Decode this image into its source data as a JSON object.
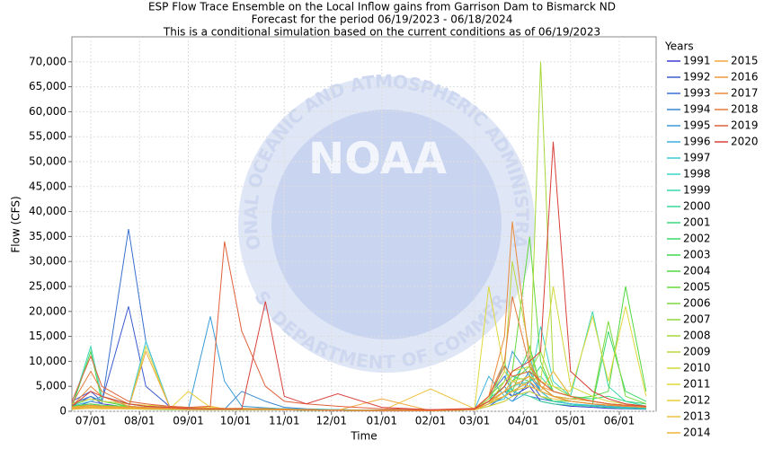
{
  "chart_data": {
    "type": "line",
    "title": [
      "ESP Flow Trace Ensemble on the Local Inflow gains from Garrison Dam to Bismarck ND",
      "Forecast for the period 06/19/2023 - 06/18/2024",
      "This is a conditional simulation based on the current conditions as of 06/19/2023"
    ],
    "xlabel": "Time",
    "ylabel": "Flow (CFS)",
    "legend_title": "Years",
    "watermark": {
      "top": "NATIONAL OCEANIC AND ATMOSPHERIC ADMINISTRATION",
      "center": "NOAA",
      "bottom": "U.S. DEPARTMENT OF COMMERCE"
    },
    "grid": true,
    "x": [
      "06/19",
      "07/01",
      "07/08",
      "07/25",
      "08/05",
      "08/20",
      "09/01",
      "09/15",
      "09/24",
      "10/05",
      "10/20",
      "11/01",
      "11/15",
      "12/05",
      "01/01",
      "02/01",
      "03/01",
      "03/10",
      "03/20",
      "03/25",
      "04/05",
      "04/12",
      "04/20",
      "05/01",
      "05/15",
      "05/25",
      "06/05",
      "06/18"
    ],
    "xticks": [
      "07/01",
      "08/01",
      "09/01",
      "10/01",
      "11/01",
      "12/01",
      "01/01",
      "02/01",
      "03/01",
      "04/01",
      "05/01",
      "06/01"
    ],
    "ylim": [
      0,
      75000
    ],
    "yticks": [
      0,
      {
        "value": 5000,
        "label": "5,000"
      },
      {
        "value": 10000,
        "label": "10,000"
      },
      {
        "value": 15000,
        "label": "15,000"
      },
      {
        "value": 20000,
        "label": "20,000"
      },
      {
        "value": 25000,
        "label": "25,000"
      },
      {
        "value": 30000,
        "label": "30,000"
      },
      {
        "value": 35000,
        "label": "35,000"
      },
      {
        "value": 40000,
        "label": "40,000"
      },
      {
        "value": 45000,
        "label": "45,000"
      },
      {
        "value": 50000,
        "label": "50,000"
      },
      {
        "value": 55000,
        "label": "55,000"
      },
      {
        "value": 60000,
        "label": "60,000"
      },
      {
        "value": 65000,
        "label": "65,000"
      },
      {
        "value": 70000,
        "label": "70,000"
      }
    ],
    "series": [
      {
        "name": "1991",
        "color": "#3a3ad0",
        "values": [
          1000,
          3000,
          1500,
          800,
          500,
          400,
          300,
          300,
          300,
          400,
          500,
          400,
          300,
          200,
          100,
          100,
          500,
          2000,
          4000,
          3000,
          5000,
          2000,
          1500,
          1000,
          800,
          600,
          500,
          400
        ]
      },
      {
        "name": "1992",
        "color": "#3a5ad0",
        "values": [
          2000,
          4000,
          2000,
          21000,
          5000,
          1000,
          500,
          400,
          300,
          300,
          300,
          300,
          200,
          200,
          100,
          100,
          300,
          1000,
          3000,
          2000,
          6000,
          3000,
          2000,
          1500,
          1000,
          800,
          600,
          500
        ]
      },
      {
        "name": "1993",
        "color": "#3a70d0",
        "values": [
          500,
          2000,
          1500,
          36500,
          14000,
          1000,
          500,
          400,
          400,
          500,
          600,
          500,
          400,
          300,
          200,
          200,
          400,
          3000,
          7000,
          4000,
          3000,
          2500,
          2000,
          1500,
          1000,
          800,
          700,
          600
        ]
      },
      {
        "name": "1994",
        "color": "#3a86d0",
        "values": [
          1500,
          3000,
          2000,
          1500,
          1000,
          800,
          600,
          500,
          400,
          4000,
          2000,
          800,
          500,
          300,
          200,
          200,
          500,
          2000,
          5000,
          3000,
          8000,
          4000,
          2000,
          1500,
          1000,
          800,
          600,
          500
        ]
      },
      {
        "name": "1995",
        "color": "#3a9cd6",
        "values": [
          800,
          1500,
          1000,
          800,
          600,
          500,
          400,
          19000,
          6000,
          1000,
          700,
          500,
          400,
          300,
          200,
          200,
          300,
          1500,
          6000,
          12000,
          7000,
          4000,
          3000,
          2000,
          1500,
          1000,
          800,
          600
        ]
      },
      {
        "name": "1996",
        "color": "#3ab0dc",
        "values": [
          1000,
          2000,
          3000,
          1500,
          1000,
          800,
          600,
          500,
          500,
          600,
          500,
          400,
          300,
          200,
          200,
          200,
          400,
          7000,
          3000,
          2000,
          4000,
          3000,
          2000,
          1500,
          1200,
          1000,
          800,
          700
        ]
      },
      {
        "name": "1997",
        "color": "#3ac8d8",
        "values": [
          600,
          1200,
          1000,
          800,
          14000,
          1000,
          600,
          500,
          400,
          400,
          400,
          300,
          300,
          200,
          100,
          100,
          300,
          1500,
          2500,
          6000,
          11000,
          4000,
          2000,
          1500,
          1000,
          800,
          600,
          500
        ]
      },
      {
        "name": "1998",
        "color": "#3ad6c8",
        "values": [
          700,
          1000,
          900,
          800,
          600,
          500,
          400,
          400,
          400,
          500,
          500,
          400,
          300,
          200,
          100,
          100,
          400,
          2000,
          4000,
          6000,
          5000,
          17000,
          6000,
          3000,
          2000,
          1500,
          1000,
          800
        ]
      },
      {
        "name": "1999",
        "color": "#3ad8b0",
        "values": [
          900,
          13000,
          3000,
          1500,
          1000,
          800,
          600,
          500,
          400,
          500,
          600,
          500,
          400,
          300,
          200,
          200,
          400,
          2000,
          3000,
          5000,
          6000,
          7000,
          4000,
          3000,
          20000,
          5000,
          2000,
          1000
        ]
      },
      {
        "name": "2000",
        "color": "#3ad898",
        "values": [
          500,
          800,
          700,
          600,
          500,
          400,
          300,
          300,
          300,
          300,
          300,
          300,
          200,
          200,
          100,
          100,
          300,
          1500,
          10000,
          4000,
          3000,
          2000,
          1500,
          1200,
          1000,
          800,
          600,
          500
        ]
      },
      {
        "name": "2001",
        "color": "#3ad880",
        "values": [
          1200,
          2500,
          2000,
          1500,
          1000,
          800,
          600,
          500,
          500,
          500,
          500,
          400,
          300,
          200,
          200,
          200,
          500,
          2500,
          5000,
          7000,
          6000,
          9000,
          4000,
          3000,
          2500,
          3000,
          2000,
          1500
        ]
      },
      {
        "name": "2002",
        "color": "#3ad868",
        "values": [
          400,
          700,
          600,
          500,
          400,
          300,
          300,
          300,
          300,
          300,
          300,
          300,
          200,
          200,
          100,
          100,
          300,
          1000,
          2000,
          3000,
          4000,
          3000,
          2000,
          2000,
          1500,
          16000,
          4000,
          2000
        ]
      },
      {
        "name": "2003",
        "color": "#40d850",
        "values": [
          800,
          12000,
          2000,
          1000,
          700,
          500,
          400,
          400,
          400,
          400,
          400,
          300,
          300,
          200,
          100,
          100,
          400,
          2000,
          4000,
          4000,
          13000,
          5000,
          3000,
          2000,
          1500,
          1200,
          1000,
          800
        ]
      },
      {
        "name": "2004",
        "color": "#50d840",
        "values": [
          600,
          900,
          800,
          700,
          600,
          500,
          400,
          400,
          400,
          400,
          400,
          300,
          300,
          200,
          100,
          100,
          300,
          1500,
          3000,
          4000,
          5000,
          4000,
          3000,
          2500,
          3000,
          4000,
          25000,
          4000
        ]
      },
      {
        "name": "2005",
        "color": "#64d83a",
        "values": [
          1000,
          1500,
          1200,
          1000,
          800,
          600,
          500,
          500,
          500,
          500,
          500,
          400,
          300,
          200,
          200,
          200,
          400,
          3000,
          6000,
          8000,
          35000,
          10000,
          4000,
          3000,
          2000,
          1500,
          1000,
          800
        ]
      },
      {
        "name": "2006",
        "color": "#7ad83a",
        "values": [
          700,
          1000,
          900,
          800,
          700,
          600,
          500,
          400,
          400,
          400,
          400,
          300,
          300,
          200,
          100,
          100,
          300,
          2000,
          4000,
          6000,
          9000,
          5000,
          3000,
          2500,
          2000,
          18000,
          3000,
          1500
        ]
      },
      {
        "name": "2007",
        "color": "#90d83a",
        "values": [
          500,
          800,
          700,
          600,
          500,
          400,
          400,
          400,
          400,
          400,
          400,
          300,
          300,
          200,
          100,
          100,
          300,
          2000,
          5000,
          7000,
          8000,
          12000,
          5000,
          3000,
          2000,
          1500,
          1200,
          1000
        ]
      },
      {
        "name": "2008",
        "color": "#a6d83a",
        "values": [
          900,
          1200,
          1000,
          900,
          700,
          600,
          500,
          500,
          500,
          500,
          500,
          400,
          300,
          200,
          100,
          100,
          400,
          1500,
          3000,
          4000,
          6000,
          70000,
          8000,
          3000,
          2000,
          1500,
          1200,
          1000
        ]
      },
      {
        "name": "2009",
        "color": "#bcd83a",
        "values": [
          600,
          900,
          800,
          700,
          600,
          500,
          400,
          400,
          400,
          400,
          400,
          300,
          300,
          200,
          100,
          100,
          300,
          2500,
          8000,
          30000,
          12000,
          5000,
          3000,
          2000,
          1500,
          1200,
          1000,
          800
        ]
      },
      {
        "name": "2010",
        "color": "#d2d83a",
        "values": [
          400,
          700,
          600,
          500,
          13000,
          1000,
          500,
          400,
          400,
          400,
          400,
          300,
          300,
          200,
          100,
          100,
          300,
          1500,
          6000,
          8000,
          9000,
          6000,
          25000,
          5000,
          3000,
          2000,
          1500,
          1000
        ]
      },
      {
        "name": "2011",
        "color": "#e0d83a",
        "values": [
          1500,
          2500,
          2000,
          1500,
          1200,
          1000,
          800,
          700,
          600,
          600,
          500,
          400,
          300,
          200,
          200,
          200,
          500,
          25000,
          8000,
          6000,
          7000,
          6000,
          5000,
          4000,
          19000,
          6000,
          21000,
          3000
        ]
      },
      {
        "name": "2012",
        "color": "#e8cc3a",
        "values": [
          500,
          800,
          700,
          600,
          500,
          400,
          4000,
          800,
          500,
          400,
          400,
          300,
          300,
          200,
          100,
          100,
          300,
          1000,
          2000,
          3000,
          4000,
          3000,
          2500,
          2000,
          1500,
          1200,
          1000,
          800
        ]
      },
      {
        "name": "2013",
        "color": "#eec03a",
        "values": [
          400,
          600,
          500,
          500,
          400,
          400,
          300,
          300,
          300,
          300,
          300,
          300,
          200,
          200,
          100,
          4500,
          500,
          2000,
          3000,
          4000,
          5000,
          4000,
          3000,
          2000,
          1500,
          1200,
          1000,
          800
        ]
      },
      {
        "name": "2014",
        "color": "#f0b43a",
        "values": [
          700,
          1000,
          900,
          800,
          600,
          500,
          400,
          1000,
          500,
          400,
          400,
          300,
          300,
          200,
          100,
          100,
          300,
          1500,
          4000,
          6000,
          5000,
          4000,
          8000,
          3000,
          2000,
          1500,
          1200,
          1000
        ]
      },
      {
        "name": "2015",
        "color": "#f0a83a",
        "values": [
          500,
          800,
          700,
          600,
          12000,
          1000,
          500,
          400,
          400,
          400,
          400,
          300,
          300,
          200,
          2500,
          100,
          300,
          1500,
          3000,
          4000,
          6000,
          4000,
          3000,
          2500,
          2000,
          1500,
          1200,
          1000
        ]
      },
      {
        "name": "2016",
        "color": "#ee9a3a",
        "values": [
          800,
          1200,
          1000,
          800,
          600,
          500,
          400,
          400,
          400,
          400,
          400,
          300,
          300,
          200,
          100,
          100,
          300,
          2000,
          4000,
          5000,
          7000,
          5000,
          4000,
          3000,
          2000,
          1500,
          1200,
          1000
        ]
      },
      {
        "name": "2017",
        "color": "#ea8a3a",
        "values": [
          1000,
          5000,
          3000,
          1000,
          800,
          600,
          500,
          500,
          500,
          500,
          500,
          400,
          300,
          200,
          100,
          100,
          400,
          3000,
          15000,
          38000,
          10000,
          5000,
          3000,
          2000,
          1500,
          1200,
          1000,
          800
        ]
      },
      {
        "name": "2018",
        "color": "#e67a3a",
        "values": [
          1500,
          8000,
          4000,
          1500,
          1000,
          800,
          600,
          500,
          500,
          500,
          500,
          400,
          300,
          200,
          200,
          200,
          500,
          3000,
          10000,
          23000,
          9000,
          6000,
          4000,
          3000,
          2000,
          1500,
          1200,
          1000
        ]
      },
      {
        "name": "2019",
        "color": "#e0603a",
        "values": [
          2000,
          11000,
          5000,
          2000,
          1500,
          1000,
          800,
          1000,
          34000,
          16000,
          5000,
          2000,
          1500,
          1000,
          500,
          300,
          600,
          3000,
          9000,
          7000,
          8000,
          6000,
          4000,
          3000,
          2000,
          1500,
          1200,
          1000
        ]
      },
      {
        "name": "2020",
        "color": "#d8403a",
        "values": [
          1000,
          4000,
          3000,
          1500,
          1000,
          800,
          600,
          500,
          500,
          500,
          22000,
          3000,
          1500,
          3500,
          800,
          300,
          500,
          2000,
          5000,
          8000,
          10000,
          12000,
          54000,
          8000,
          4000,
          2500,
          1500,
          1000
        ]
      }
    ]
  }
}
